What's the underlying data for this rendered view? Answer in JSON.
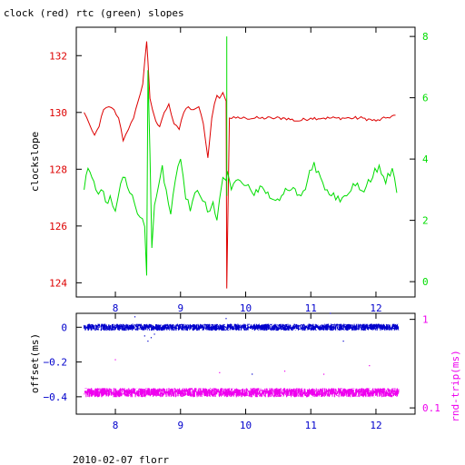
{
  "title": "clock (red) rtc (green) slopes",
  "footer": "2010-02-07 florr",
  "colors": {
    "red": "#dd0000",
    "green": "#00dd00",
    "blue": "#0000cc",
    "magenta": "#ee00ee",
    "axis": "#000000"
  },
  "chart_data": [
    {
      "type": "line",
      "title": "clock (red) rtc (green) slopes",
      "ylabel": "clockslope",
      "y2label": "",
      "xlim": [
        7.4,
        12.6
      ],
      "ylim": [
        123.5,
        133.0
      ],
      "y2lim": [
        -0.5,
        8.3
      ],
      "xticks": [
        8,
        9,
        10,
        11,
        12
      ],
      "xtick_labels": [
        "8",
        "9",
        "10",
        "11",
        "12"
      ],
      "yticks": [
        124,
        126,
        128,
        130,
        132
      ],
      "ytick_labels": [
        "124",
        "126",
        "128",
        "130",
        "132"
      ],
      "y2ticks": [
        0,
        2,
        4,
        6,
        8
      ],
      "y2tick_labels": [
        "0",
        "2",
        "4",
        "6",
        "8"
      ],
      "series": [
        {
          "axis": "left",
          "color_key": "red",
          "x": [
            7.52,
            7.6,
            7.68,
            7.75,
            7.82,
            7.9,
            7.98,
            8.05,
            8.12,
            8.2,
            8.28,
            8.35,
            8.42,
            8.48,
            8.5,
            8.53,
            8.57,
            8.62,
            8.68,
            8.75,
            8.82,
            8.9,
            8.98,
            9.05,
            9.12,
            9.2,
            9.28,
            9.35,
            9.42,
            9.48,
            9.52,
            9.56,
            9.6,
            9.65,
            9.7,
            9.71,
            9.75,
            9.85,
            10.0,
            10.2,
            10.4,
            10.6,
            10.8,
            11.0,
            11.2,
            11.4,
            11.6,
            11.8,
            12.0,
            12.15,
            12.3
          ],
          "y": [
            130.0,
            129.6,
            129.2,
            129.5,
            130.1,
            130.2,
            130.1,
            129.8,
            129.0,
            129.4,
            129.8,
            130.4,
            131.0,
            132.5,
            131.8,
            130.5,
            130.1,
            129.7,
            129.5,
            130.0,
            130.3,
            129.6,
            129.4,
            130.0,
            130.2,
            130.1,
            130.2,
            129.6,
            128.4,
            129.8,
            130.3,
            130.6,
            130.5,
            130.7,
            130.4,
            123.8,
            129.8,
            129.8,
            129.8,
            129.8,
            129.8,
            129.8,
            129.7,
            129.8,
            129.8,
            129.8,
            129.8,
            129.8,
            129.7,
            129.8,
            129.9
          ]
        },
        {
          "axis": "right",
          "color_key": "green",
          "x": [
            7.52,
            7.58,
            7.64,
            7.7,
            7.78,
            7.85,
            7.92,
            8.0,
            8.08,
            8.15,
            8.22,
            8.3,
            8.38,
            8.45,
            8.48,
            8.5,
            8.53,
            8.56,
            8.6,
            8.66,
            8.72,
            8.78,
            8.85,
            8.92,
            9.0,
            9.08,
            9.15,
            9.22,
            9.3,
            9.38,
            9.45,
            9.5,
            9.56,
            9.6,
            9.65,
            9.7,
            9.72,
            9.78,
            9.85,
            9.95,
            10.1,
            10.25,
            10.4,
            10.55,
            10.7,
            10.85,
            10.95,
            11.05,
            11.15,
            11.25,
            11.35,
            11.45,
            11.55,
            11.65,
            11.75,
            11.85,
            11.95,
            12.05,
            12.15,
            12.25,
            12.32
          ],
          "y": [
            3.0,
            3.7,
            3.4,
            3.0,
            3.0,
            2.6,
            2.8,
            2.3,
            3.2,
            3.4,
            2.9,
            2.5,
            2.1,
            1.8,
            0.2,
            6.9,
            4.2,
            1.1,
            2.5,
            3.1,
            3.8,
            3.0,
            2.2,
            3.3,
            4.0,
            2.7,
            2.3,
            2.9,
            2.8,
            2.6,
            2.3,
            2.6,
            2.0,
            2.7,
            3.4,
            3.3,
            3.6,
            3.0,
            3.3,
            3.2,
            2.9,
            3.1,
            2.7,
            2.8,
            3.0,
            2.8,
            3.3,
            3.9,
            3.4,
            3.0,
            2.9,
            2.6,
            2.8,
            3.2,
            3.0,
            3.1,
            3.4,
            3.8,
            3.2,
            3.7,
            2.9
          ]
        }
      ],
      "annotations": [
        {
          "kind": "vline",
          "axis": "right",
          "color_key": "green",
          "x": 9.71,
          "y": [
            2.8,
            8.0
          ]
        }
      ]
    },
    {
      "type": "scatter",
      "ylabel": "offset(ms)",
      "y2label": "rnd-trip(ms)",
      "xlim": [
        7.4,
        12.6
      ],
      "ylim": [
        -0.5,
        0.08
      ],
      "y2lim": [
        0.085,
        1.17
      ],
      "y2_scale": "log",
      "xticks": [
        8,
        9,
        10,
        11,
        12
      ],
      "xtick_labels": [
        "8",
        "9",
        "10",
        "11",
        "12"
      ],
      "yticks": [
        0,
        -0.2,
        -0.4
      ],
      "ytick_labels": [
        "0",
        "−0.2",
        "−0.4"
      ],
      "y2ticks": [
        1,
        0.1
      ],
      "y2tick_labels": [
        "1",
        "0.1"
      ],
      "series": [
        {
          "name": "offset",
          "axis": "left",
          "color_key": "blue",
          "band": {
            "x_start": 7.52,
            "x_end": 12.35,
            "center": 0.0,
            "spread": 0.02
          },
          "outliers_x": [
            8.3,
            8.45,
            8.5,
            8.55,
            8.6,
            9.7,
            10.1,
            11.3,
            11.5
          ],
          "outliers_y": [
            0.06,
            -0.05,
            -0.08,
            -0.06,
            -0.04,
            0.05,
            -0.27,
            0.08,
            -0.08
          ]
        },
        {
          "name": "rnd-trip",
          "axis": "right",
          "color_key": "magenta",
          "band": {
            "x_start": 7.52,
            "x_end": 12.35,
            "center": 0.15,
            "spread": 0.018
          },
          "outliers_x": [
            8.0,
            9.6,
            10.6,
            11.2,
            11.9
          ],
          "outliers_y": [
            0.35,
            0.25,
            0.26,
            0.24,
            0.3
          ]
        }
      ]
    }
  ]
}
